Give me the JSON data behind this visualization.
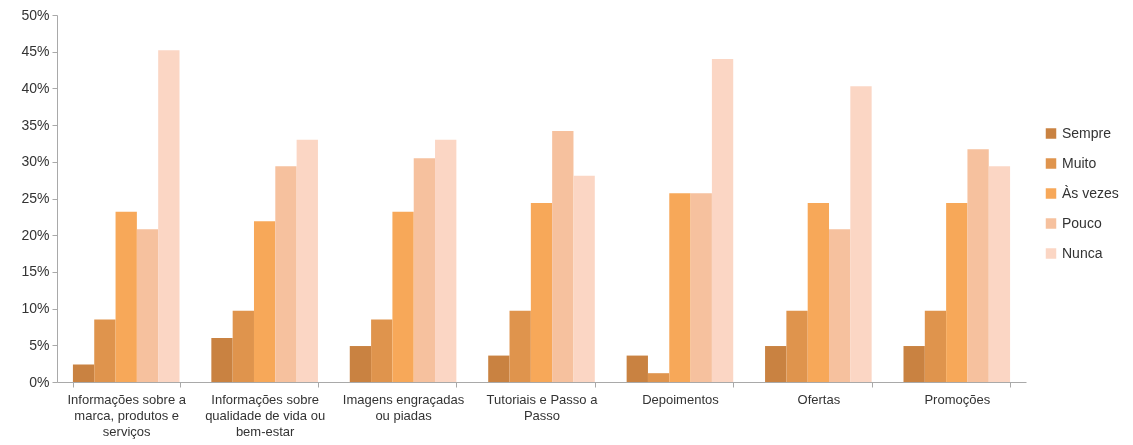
{
  "chart_data": {
    "type": "bar",
    "categories": [
      "Informações sobre a marca, produtos e serviços",
      "Informações sobre qualidade de vida ou bem-estar",
      "Imagens engraçadas ou piadas",
      "Tutoriais e Passo a Passo",
      "Depoimentos",
      "Ofertas",
      "Promoções"
    ],
    "series": [
      {
        "name": "Sempre",
        "color": "#c98241",
        "values": [
          2.4,
          6.0,
          4.9,
          3.6,
          3.6,
          4.9,
          4.9
        ]
      },
      {
        "name": "Muito",
        "color": "#df944d",
        "values": [
          8.5,
          9.7,
          8.5,
          9.7,
          1.2,
          9.7,
          9.7
        ]
      },
      {
        "name": "Às vezes",
        "color": "#f7a859",
        "values": [
          23.2,
          21.9,
          23.2,
          24.4,
          25.7,
          24.4,
          24.4
        ]
      },
      {
        "name": "Pouco",
        "color": "#f6c19e",
        "values": [
          20.8,
          29.4,
          30.5,
          34.2,
          25.7,
          20.8,
          31.7
        ]
      },
      {
        "name": "Nunca",
        "color": "#fbd6c4",
        "values": [
          45.2,
          33.0,
          33.0,
          28.1,
          44.0,
          40.3,
          29.4
        ]
      }
    ],
    "ylim": [
      0,
      50
    ],
    "yticks": [
      {
        "value": 0,
        "label": "0%"
      },
      {
        "value": 5,
        "label": "5%"
      },
      {
        "value": 10,
        "label": "10%"
      },
      {
        "value": 15,
        "label": "15%"
      },
      {
        "value": 20,
        "label": "20%"
      },
      {
        "value": 25,
        "label": "25%"
      },
      {
        "value": 30,
        "label": "30%"
      },
      {
        "value": 35,
        "label": "35%"
      },
      {
        "value": 40,
        "label": "40%"
      },
      {
        "value": 45,
        "label": "45%"
      },
      {
        "value": 50,
        "label": "50%"
      }
    ],
    "legend": "right"
  }
}
